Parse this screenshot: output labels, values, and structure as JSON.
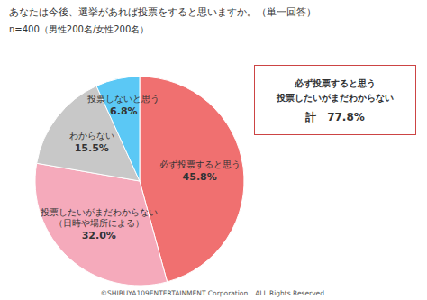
{
  "chart_data": {
    "type": "pie",
    "title": "あなたは今後、選挙があれば投票をすると思いますか。（単一回答）",
    "subtitle": "n=400（男性200名/女性200名）",
    "categories": [
      "必ず投票すると思う",
      "投票したいがまだわからない\n（日時や場所による）",
      "わからない",
      "投票しないと思う"
    ],
    "values": [
      45.8,
      32.0,
      15.5,
      6.8
    ],
    "value_labels": [
      "45.8%",
      "32.0%",
      "15.5%",
      "6.8%"
    ],
    "colors": [
      "#F07070",
      "#F5AABB",
      "#C8C8C8",
      "#5BC8F5"
    ],
    "data_labels": true,
    "annotations": [
      "必ず投票すると思う",
      "投票したいがまだわからない",
      "計　77.8%",
      "©SHIBUYA109ENTERTAINMENT Corporation　ALL Rights Reserved."
    ]
  }
}
